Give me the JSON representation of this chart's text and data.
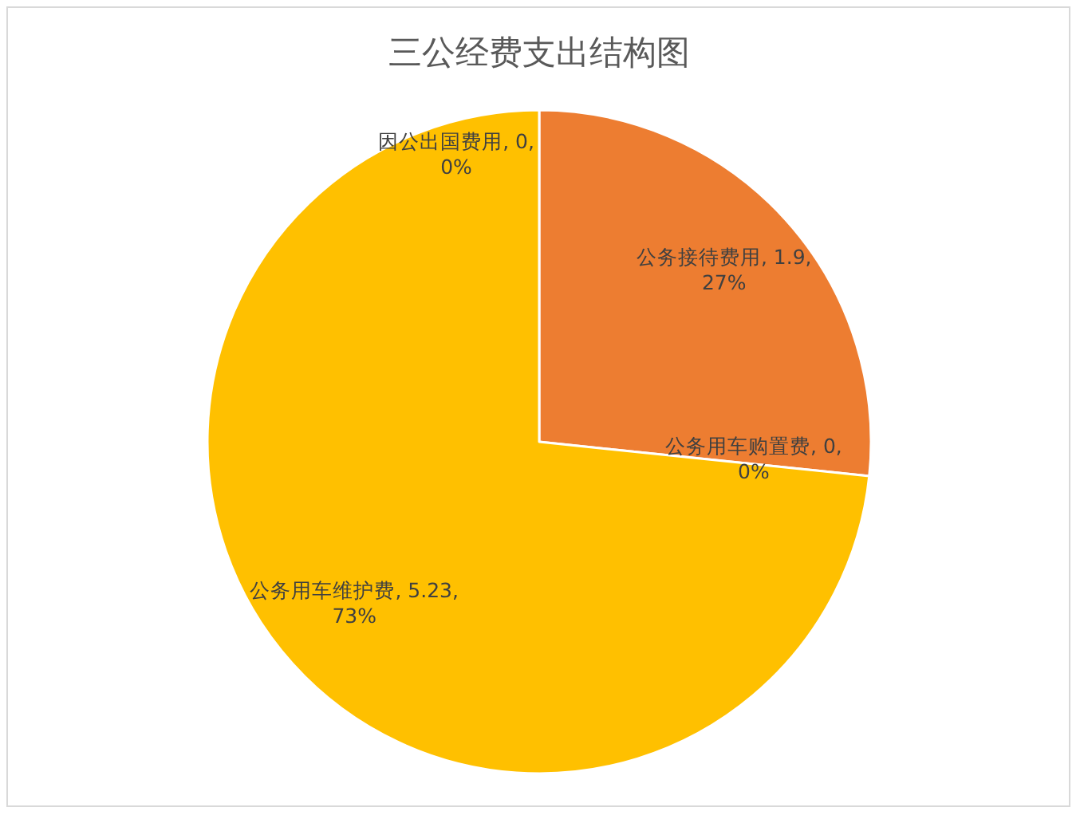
{
  "chart_data": {
    "type": "pie",
    "title": "三公经费支出结构图",
    "categories": [
      "因公出国费用",
      "公务接待费用",
      "公务用车购置费",
      "公务用车维护费"
    ],
    "values": [
      0,
      1.9,
      0,
      5.23
    ],
    "colors": [
      "#4472c4",
      "#ed7d31",
      "#a5a5a5",
      "#ffc000"
    ],
    "value_labels": [
      ", 0, 0%",
      ", 1.9, 27%",
      ", 0, 0%",
      ", 5.23, 73%"
    ]
  }
}
